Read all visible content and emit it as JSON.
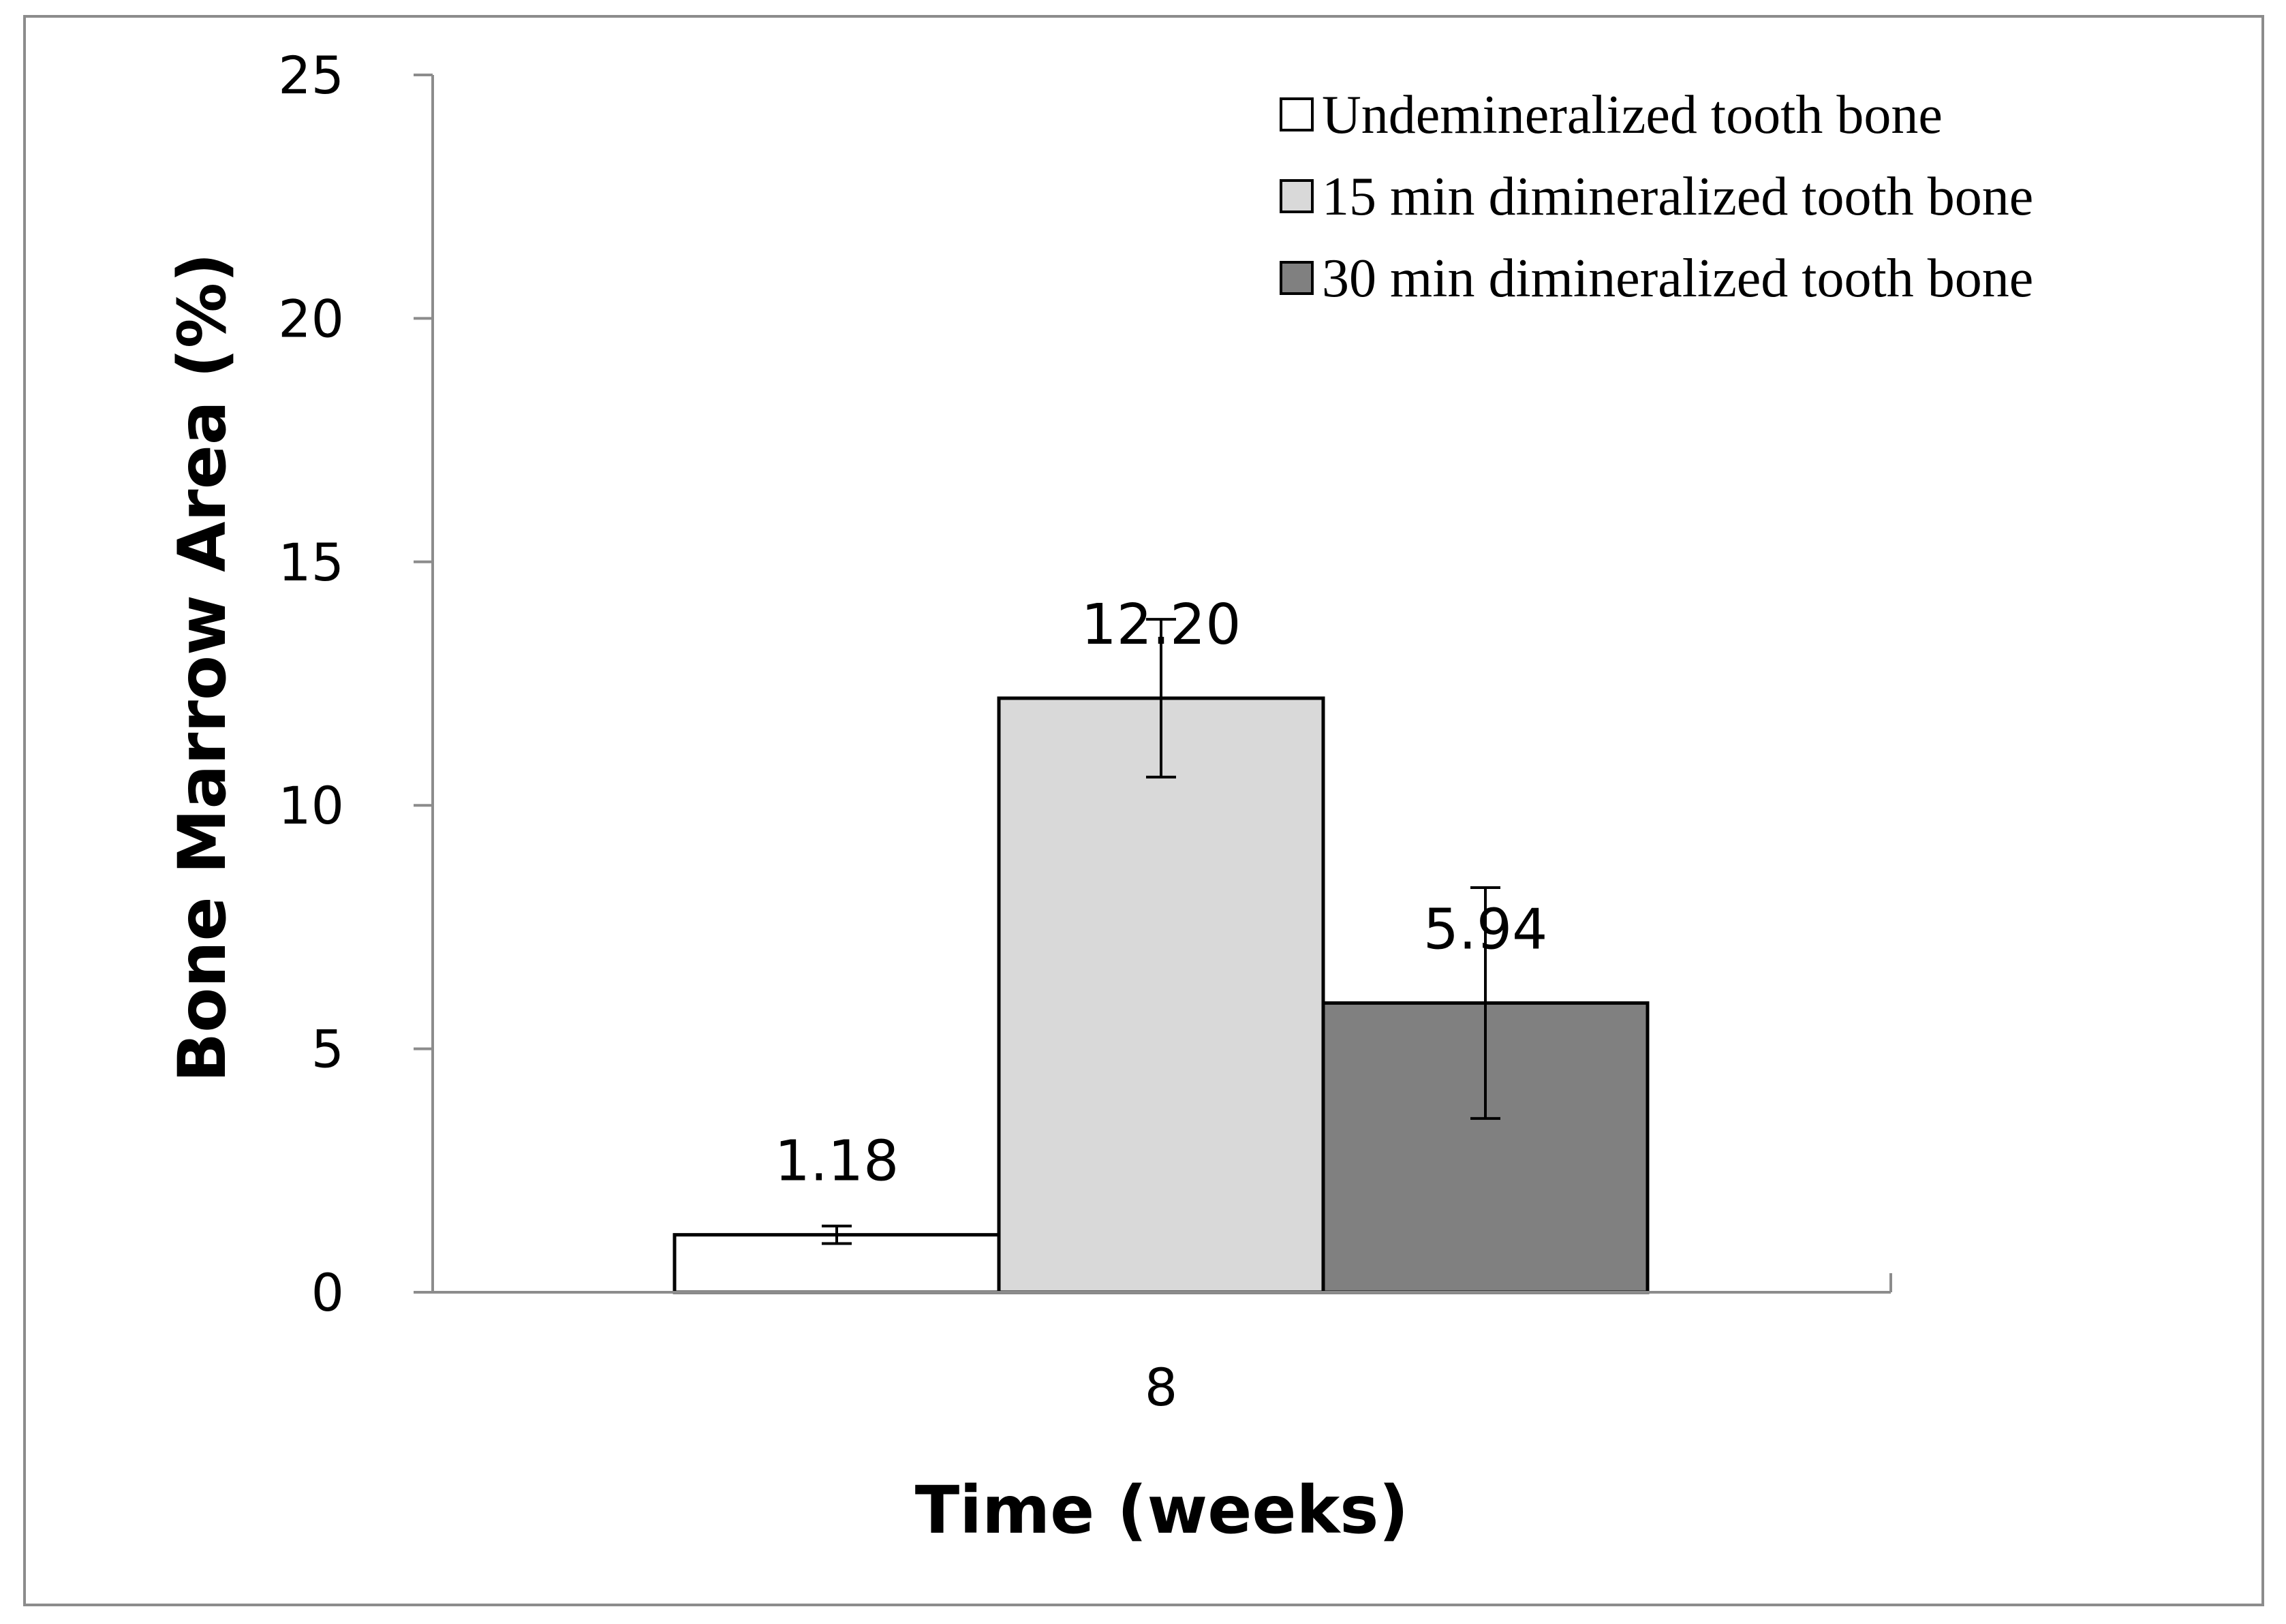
{
  "chart_data": {
    "type": "bar",
    "categories": [
      "8"
    ],
    "series": [
      {
        "name": "Undemineralized tooth bone",
        "values": [
          1.18
        ],
        "error": [
          0.18
        ],
        "color": "#ffffff",
        "value_label": "1.18"
      },
      {
        "name": "15 min dimineralized tooth bone",
        "values": [
          12.2
        ],
        "error": [
          1.62
        ],
        "color": "#d9d9d9",
        "value_label": "12.20"
      },
      {
        "name": "30 min dimineralized tooth bone",
        "values": [
          5.94
        ],
        "error": [
          2.37
        ],
        "color": "#808080",
        "value_label": "5.94"
      }
    ],
    "title": "",
    "xlabel": "Time  (weeks)",
    "ylabel": "Bone Marrow Area  (%)",
    "ylim": [
      0,
      25
    ],
    "yticks": [
      0,
      5,
      10,
      15,
      20,
      25
    ],
    "grid": false,
    "legend_position": "top-right"
  }
}
